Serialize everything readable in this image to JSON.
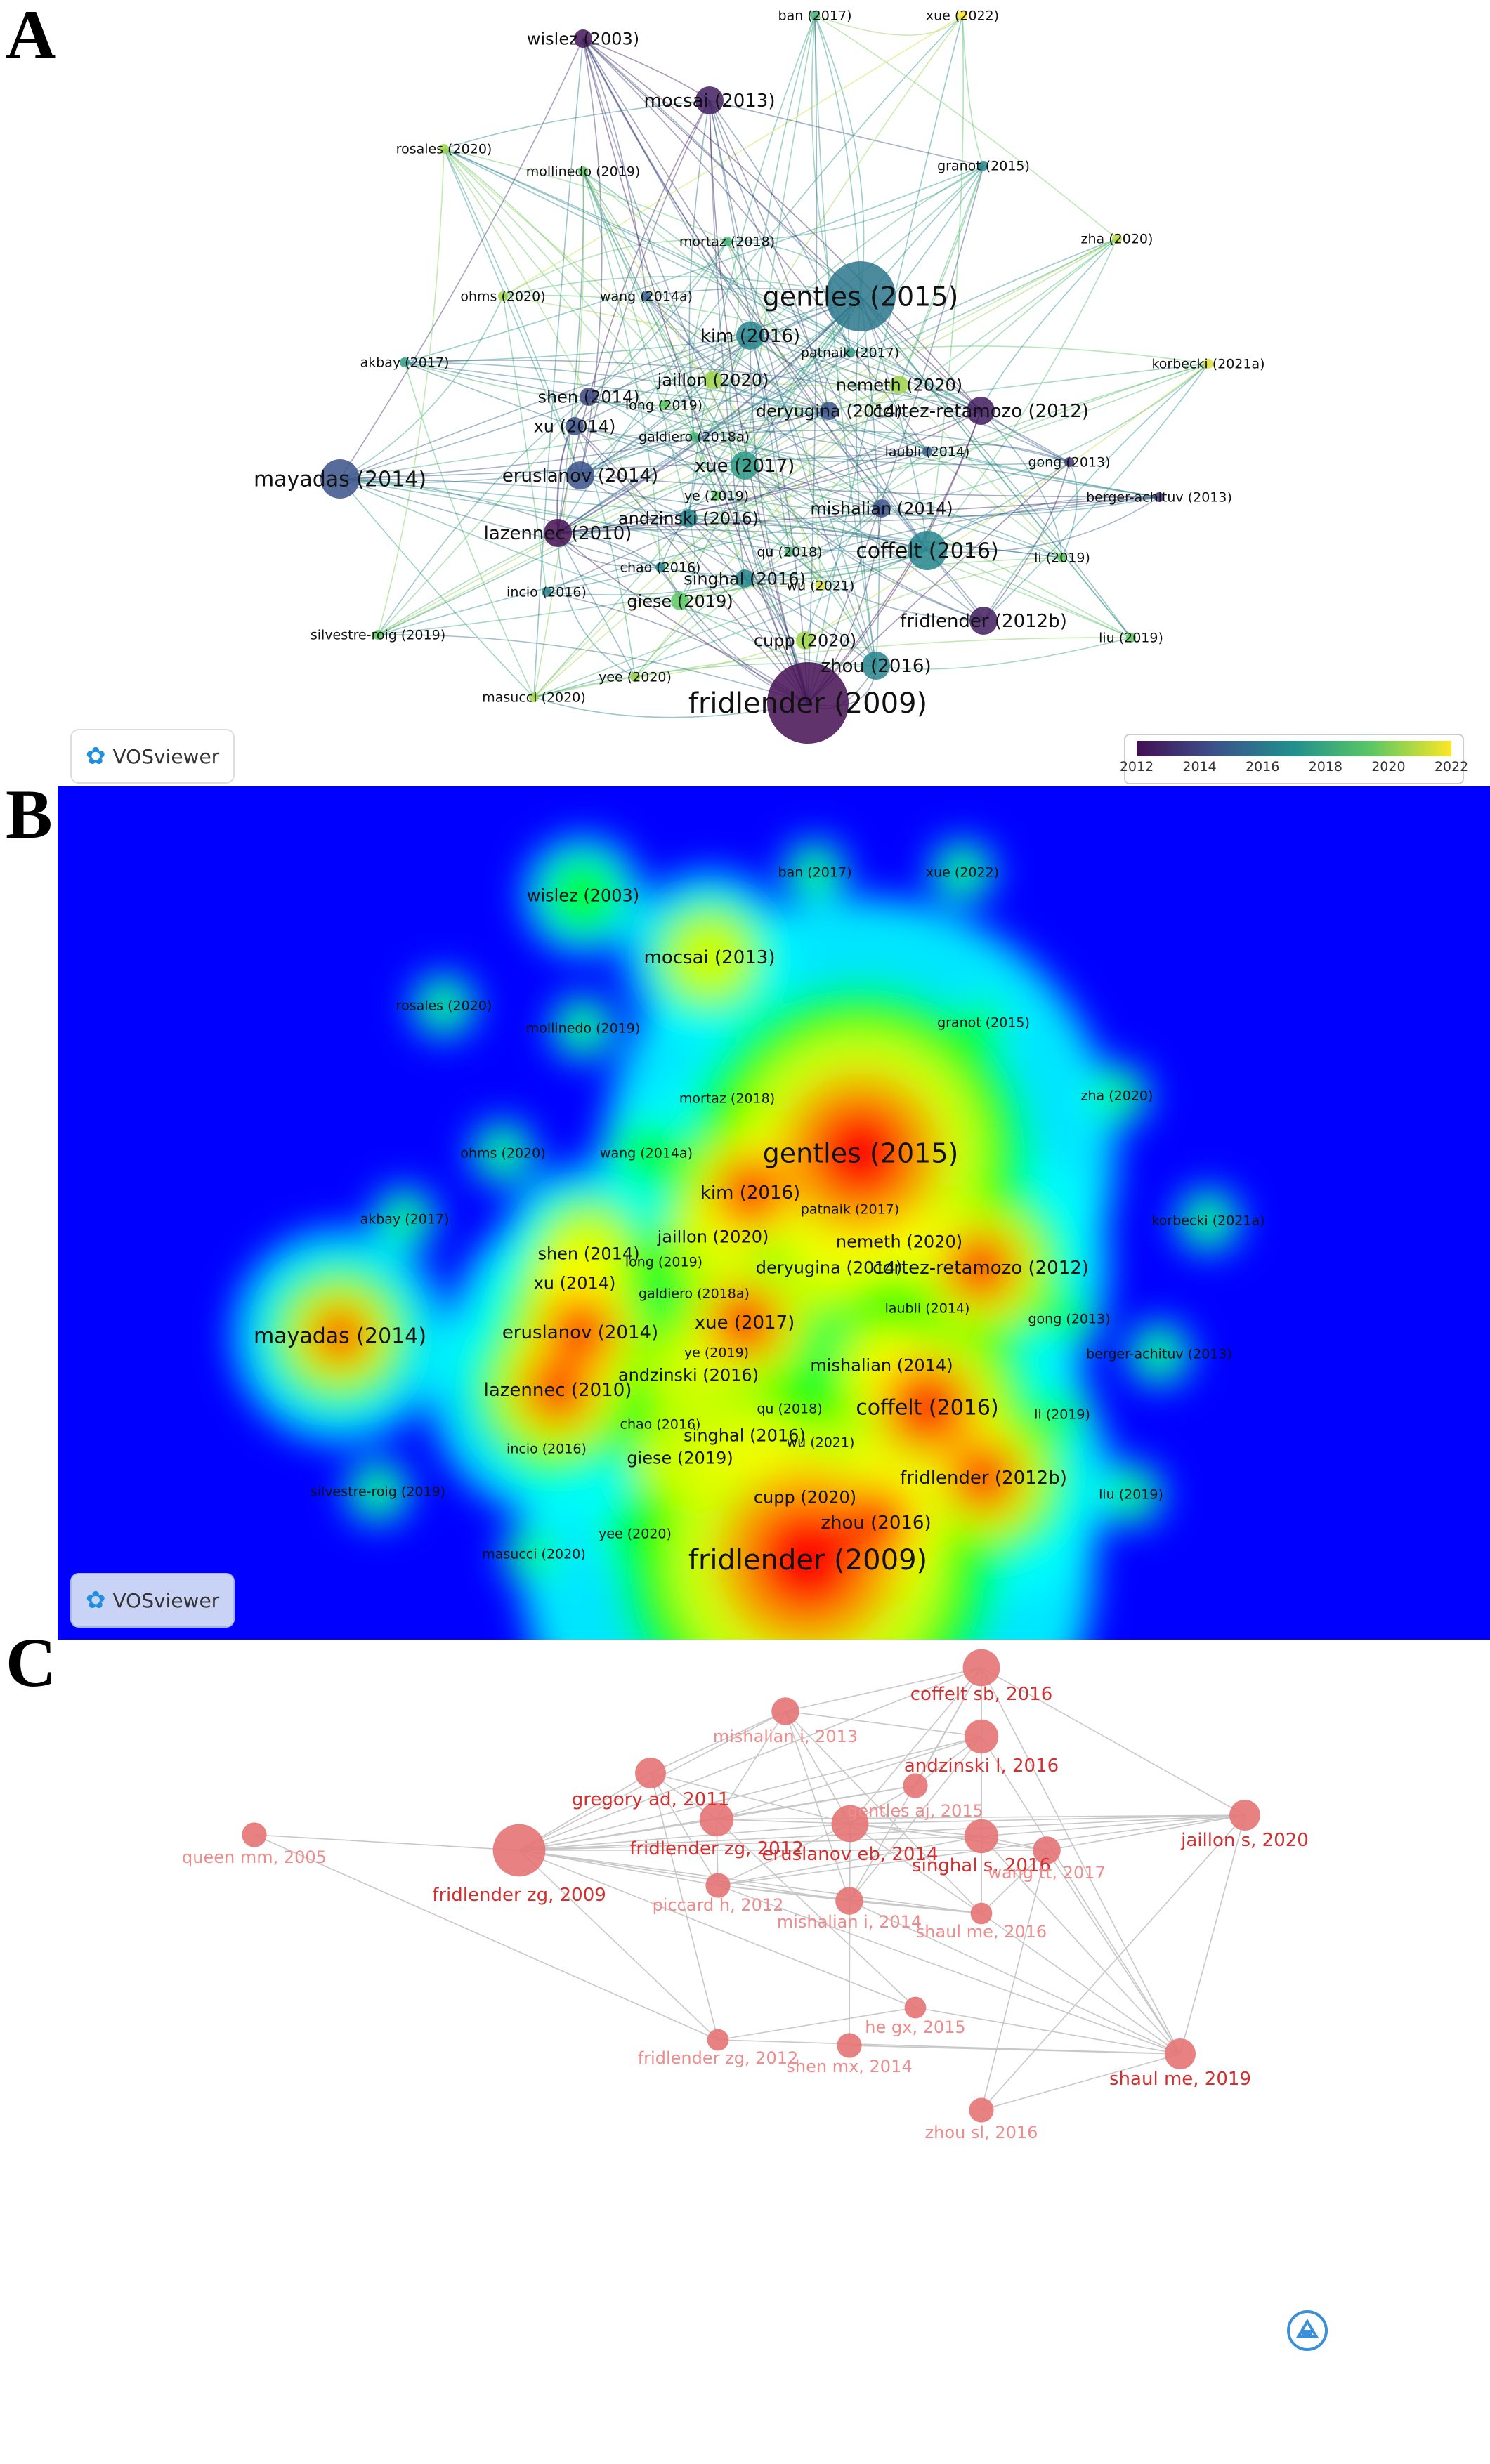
{
  "panels": {
    "a": "A",
    "b": "B",
    "c": "C"
  },
  "vosviewer": {
    "label": "VOSviewer"
  },
  "colorbar": {
    "ticks": [
      "2012",
      "2014",
      "2016",
      "2018",
      "2020",
      "2022"
    ],
    "colors": [
      "#440f54",
      "#3b528b",
      "#21908d",
      "#5dc863",
      "#fde725"
    ]
  },
  "network_nodes": [
    {
      "id": "wislez (2003)",
      "year": 2012.2,
      "size": "s"
    },
    {
      "id": "ban (2017)",
      "year": 2018.5,
      "size": "xs"
    },
    {
      "id": "xue (2022)",
      "year": 2022,
      "size": "xs"
    },
    {
      "id": "mocsai (2013)",
      "year": 2012.6,
      "size": "m"
    },
    {
      "id": "rosales (2020)",
      "year": 2020.5,
      "size": "xs"
    },
    {
      "id": "mollinedo (2019)",
      "year": 2019.5,
      "size": "xs"
    },
    {
      "id": "granot (2015)",
      "year": 2016.5,
      "size": "xs"
    },
    {
      "id": "mortaz (2018)",
      "year": 2018.5,
      "size": "xs"
    },
    {
      "id": "zha (2020)",
      "year": 2021,
      "size": "xs"
    },
    {
      "id": "ohms (2020)",
      "year": 2020.5,
      "size": "xs"
    },
    {
      "id": "wang (2014a)",
      "year": 2015,
      "size": "xs"
    },
    {
      "id": "gentles (2015)",
      "year": 2016,
      "size": "xl"
    },
    {
      "id": "kim (2016)",
      "year": 2016.5,
      "size": "m"
    },
    {
      "id": "patnaik (2017)",
      "year": 2017.5,
      "size": "xs"
    },
    {
      "id": "korbecki (2021a)",
      "year": 2021.5,
      "size": "xs"
    },
    {
      "id": "akbay (2017)",
      "year": 2017.5,
      "size": "xs"
    },
    {
      "id": "jaillon (2020)",
      "year": 2020.5,
      "size": "s"
    },
    {
      "id": "nemeth (2020)",
      "year": 2020.5,
      "size": "s"
    },
    {
      "id": "shen (2014)",
      "year": 2014,
      "size": "s"
    },
    {
      "id": "long (2019)",
      "year": 2019.5,
      "size": "xs"
    },
    {
      "id": "deryugina (2014)",
      "year": 2014.5,
      "size": "s"
    },
    {
      "id": "cortez-retamozo (2012)",
      "year": 2012.5,
      "size": "m"
    },
    {
      "id": "xu (2014)",
      "year": 2014.5,
      "size": "s"
    },
    {
      "id": "galdiero (2018a)",
      "year": 2018.5,
      "size": "xs"
    },
    {
      "id": "laubli (2014)",
      "year": 2015,
      "size": "xs"
    },
    {
      "id": "gong (2013)",
      "year": 2013.5,
      "size": "xs"
    },
    {
      "id": "mayadas (2014)",
      "year": 2014.5,
      "size": "l"
    },
    {
      "id": "erusianov (2014)",
      "year": 2014.5,
      "size": "m"
    },
    {
      "id": "xue (2017)",
      "year": 2017.5,
      "size": "m"
    },
    {
      "id": "berger-achituv (2013)",
      "year": 2013.5,
      "size": "xs"
    },
    {
      "id": "ye (2019)",
      "year": 2019.5,
      "size": "xs"
    },
    {
      "id": "mishalian (2014)",
      "year": 2014.5,
      "size": "s"
    },
    {
      "id": "andzinski (2016)",
      "year": 2016.5,
      "size": "s"
    },
    {
      "id": "lazennec (2010)",
      "year": 2012,
      "size": "m"
    },
    {
      "id": "qu (2018)",
      "year": 2018.5,
      "size": "xs"
    },
    {
      "id": "coffelt (2016)",
      "year": 2016.5,
      "size": "l"
    },
    {
      "id": "chao (2016)",
      "year": 2016.5,
      "size": "xs"
    },
    {
      "id": "li (2019)",
      "year": 2019.5,
      "size": "xs"
    },
    {
      "id": "singhal (2016)",
      "year": 2016.5,
      "size": "s"
    },
    {
      "id": "wu (2021)",
      "year": 2021.5,
      "size": "xs"
    },
    {
      "id": "incio (2016)",
      "year": 2016.5,
      "size": "xs"
    },
    {
      "id": "giese (2019)",
      "year": 2019.5,
      "size": "s"
    },
    {
      "id": "fridlender (2012b)",
      "year": 2012.5,
      "size": "m"
    },
    {
      "id": "silvestre-roig (2019)",
      "year": 2019.5,
      "size": "xs"
    },
    {
      "id": "liu (2019)",
      "year": 2019.5,
      "size": "xs"
    },
    {
      "id": "cupp (2020)",
      "year": 2020.5,
      "size": "s"
    },
    {
      "id": "zhou (2016)",
      "year": 2016.5,
      "size": "m"
    },
    {
      "id": "yee (2020)",
      "year": 2020.5,
      "size": "xs"
    },
    {
      "id": "masucci (2020)",
      "year": 2020.5,
      "size": "xs"
    },
    {
      "id": "fridlender (2009)",
      "year": 2012,
      "size": "xxl"
    }
  ],
  "citation_network": {
    "nodes": [
      {
        "label": "coffelt sb, 2016",
        "size": 1.2
      },
      {
        "label": "mishalian i, 2013",
        "size": 0.9
      },
      {
        "label": "andzinski l, 2016",
        "size": 1.1
      },
      {
        "label": "gregory ad, 2011",
        "size": 1.0
      },
      {
        "label": "gentles aj, 2015",
        "size": 0.8
      },
      {
        "label": "jaillon s, 2020",
        "size": 1.0
      },
      {
        "label": "fridlender zg, 2012",
        "size": 1.1
      },
      {
        "label": "eruslanov eb, 2014",
        "size": 1.2
      },
      {
        "label": "singhal s, 2016",
        "size": 1.1
      },
      {
        "label": "queen mm, 2005",
        "size": 0.8
      },
      {
        "label": "fridlender zg, 2009",
        "size": 1.7
      },
      {
        "label": "wang tt, 2017",
        "size": 0.9
      },
      {
        "label": "piccard h, 2012",
        "size": 0.8
      },
      {
        "label": "mishalian i, 2014",
        "size": 0.9
      },
      {
        "label": "shaul me, 2016",
        "size": 0.7
      },
      {
        "label": "he gx, 2015",
        "size": 0.7
      },
      {
        "label": "fridlender zg, 2012",
        "size": 0.7
      },
      {
        "label": "shen mx, 2014",
        "size": 0.8
      },
      {
        "label": "shaul me, 2019",
        "size": 1.0
      },
      {
        "label": "zhou sl, 2016",
        "size": 0.8
      }
    ],
    "links": [
      [
        0,
        1
      ],
      [
        0,
        2
      ],
      [
        0,
        4
      ],
      [
        0,
        5
      ],
      [
        0,
        10
      ],
      [
        0,
        7
      ],
      [
        0,
        8
      ],
      [
        0,
        18
      ],
      [
        0,
        13
      ],
      [
        1,
        2
      ],
      [
        1,
        3
      ],
      [
        1,
        6
      ],
      [
        1,
        10
      ],
      [
        1,
        13
      ],
      [
        1,
        14
      ],
      [
        1,
        7
      ],
      [
        2,
        4
      ],
      [
        2,
        10
      ],
      [
        2,
        8
      ],
      [
        2,
        6
      ],
      [
        2,
        13
      ],
      [
        2,
        14
      ],
      [
        2,
        18
      ],
      [
        3,
        6
      ],
      [
        3,
        10
      ],
      [
        3,
        12
      ],
      [
        3,
        16
      ],
      [
        3,
        7
      ],
      [
        4,
        10
      ],
      [
        4,
        7
      ],
      [
        4,
        6
      ],
      [
        5,
        10
      ],
      [
        5,
        7
      ],
      [
        5,
        6
      ],
      [
        5,
        8
      ],
      [
        5,
        11
      ],
      [
        5,
        19
      ],
      [
        5,
        18
      ],
      [
        5,
        12
      ],
      [
        6,
        10
      ],
      [
        6,
        7
      ],
      [
        6,
        12
      ],
      [
        6,
        15
      ],
      [
        7,
        10
      ],
      [
        7,
        8
      ],
      [
        7,
        11
      ],
      [
        7,
        12
      ],
      [
        7,
        13
      ],
      [
        7,
        14
      ],
      [
        7,
        17
      ],
      [
        8,
        10
      ],
      [
        8,
        11
      ],
      [
        8,
        14
      ],
      [
        8,
        18
      ],
      [
        8,
        12
      ],
      [
        9,
        10
      ],
      [
        9,
        16
      ],
      [
        10,
        12
      ],
      [
        10,
        13
      ],
      [
        10,
        14
      ],
      [
        10,
        11
      ],
      [
        10,
        16
      ],
      [
        10,
        15
      ],
      [
        11,
        18
      ],
      [
        11,
        14
      ],
      [
        11,
        19
      ],
      [
        12,
        13
      ],
      [
        12,
        14
      ],
      [
        12,
        18
      ],
      [
        13,
        14
      ],
      [
        13,
        18
      ],
      [
        14,
        18
      ],
      [
        15,
        18
      ],
      [
        15,
        16
      ],
      [
        16,
        18
      ],
      [
        17,
        18
      ],
      [
        18,
        19
      ]
    ]
  }
}
